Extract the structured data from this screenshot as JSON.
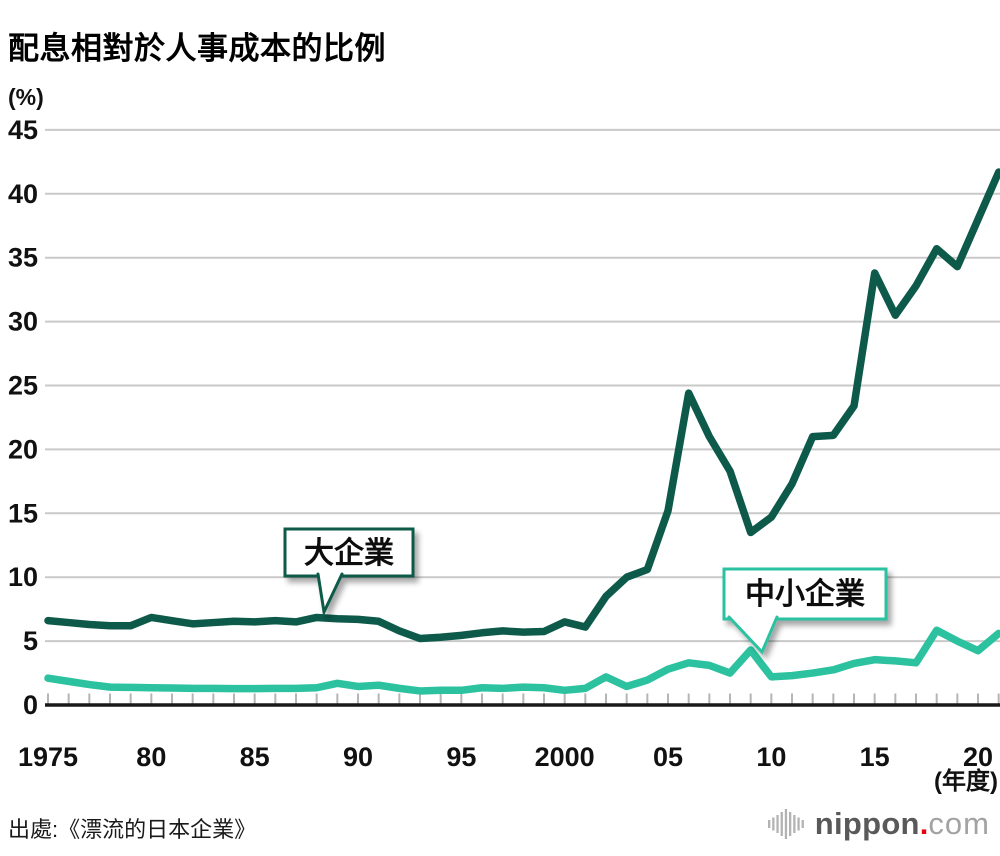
{
  "title": "配息相對於人事成本的比例",
  "y_unit": "(%)",
  "x_unit": "(年度)",
  "source": "出處:《漂流的日本企業》",
  "logo": {
    "word": "nippon",
    "dot": ".",
    "tld": "com"
  },
  "callouts": {
    "large": {
      "label": "大企業"
    },
    "sme": {
      "label": "中小企業"
    }
  },
  "colors": {
    "large": "#0d5a4a",
    "sme": "#2cc2a0",
    "grid": "#c9c9c9",
    "tick": "#b5b5b5",
    "axis": "#1a1a1a",
    "text": "#111111",
    "logo_gray": "#595959",
    "logo_light": "#a3a3a3",
    "logo_red": "#e60012",
    "logo_bars": "#b3b3b3"
  },
  "chart_data": {
    "type": "line",
    "title": "配息相對於人事成本的比例",
    "ylabel": "(%)",
    "xlabel": "(年度)",
    "ylim": [
      0,
      45
    ],
    "grid": true,
    "legend_position": "callouts-on-plot",
    "y_ticks": [
      0,
      5,
      10,
      15,
      20,
      25,
      30,
      35,
      40,
      45
    ],
    "x_ticks": [
      {
        "year": 1975,
        "label": "1975"
      },
      {
        "year": 1980,
        "label": "80"
      },
      {
        "year": 1985,
        "label": "85"
      },
      {
        "year": 1990,
        "label": "90"
      },
      {
        "year": 1995,
        "label": "95"
      },
      {
        "year": 2000,
        "label": "2000"
      },
      {
        "year": 2005,
        "label": "05"
      },
      {
        "year": 2010,
        "label": "10"
      },
      {
        "year": 2015,
        "label": "15"
      },
      {
        "year": 2020,
        "label": "20"
      }
    ],
    "years": [
      1975,
      1976,
      1977,
      1978,
      1979,
      1980,
      1981,
      1982,
      1983,
      1984,
      1985,
      1986,
      1987,
      1988,
      1989,
      1990,
      1991,
      1992,
      1993,
      1994,
      1995,
      1996,
      1997,
      1998,
      1999,
      2000,
      2001,
      2002,
      2003,
      2004,
      2005,
      2006,
      2007,
      2008,
      2009,
      2010,
      2011,
      2012,
      2013,
      2014,
      2015,
      2016,
      2017,
      2018,
      2019,
      2020,
      2021
    ],
    "series": [
      {
        "name": "大企業",
        "color_key": "large",
        "values": [
          6.6,
          6.45,
          6.3,
          6.2,
          6.2,
          6.85,
          6.6,
          6.35,
          6.45,
          6.55,
          6.5,
          6.6,
          6.5,
          6.85,
          6.75,
          6.7,
          6.55,
          5.8,
          5.2,
          5.3,
          5.45,
          5.65,
          5.8,
          5.7,
          5.75,
          6.5,
          6.1,
          8.5,
          10.0,
          10.6,
          15.2,
          24.4,
          21.0,
          18.3,
          13.5,
          14.7,
          17.3,
          21.0,
          21.1,
          23.4,
          33.8,
          30.5,
          32.8,
          35.7,
          34.3,
          38.0,
          41.7
        ]
      },
      {
        "name": "中小企業",
        "color_key": "sme",
        "values": [
          2.1,
          1.85,
          1.6,
          1.4,
          1.38,
          1.35,
          1.33,
          1.3,
          1.3,
          1.28,
          1.28,
          1.3,
          1.3,
          1.35,
          1.7,
          1.45,
          1.55,
          1.3,
          1.1,
          1.15,
          1.15,
          1.35,
          1.3,
          1.4,
          1.35,
          1.15,
          1.3,
          2.2,
          1.45,
          1.95,
          2.8,
          3.3,
          3.1,
          2.5,
          4.3,
          2.2,
          2.3,
          2.5,
          2.75,
          3.25,
          3.55,
          3.45,
          3.3,
          5.85,
          5.0,
          4.25,
          5.6
        ]
      }
    ]
  }
}
